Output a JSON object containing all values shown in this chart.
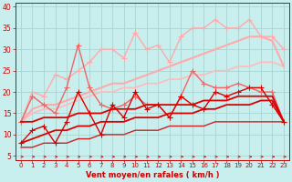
{
  "xlabel": "Vent moyen/en rafales ( km/h )",
  "background_color": "#c8eeed",
  "grid_color": "#a8d4d4",
  "x_values": [
    0,
    1,
    2,
    3,
    4,
    5,
    6,
    7,
    8,
    9,
    10,
    11,
    12,
    13,
    14,
    15,
    16,
    17,
    18,
    19,
    20,
    21,
    22,
    23
  ],
  "ylim": [
    4,
    41
  ],
  "xlim": [
    -0.5,
    23.5
  ],
  "yticks": [
    5,
    10,
    15,
    20,
    25,
    30,
    35,
    40
  ],
  "lines": [
    {
      "y": [
        8,
        11,
        12,
        8,
        13,
        20,
        15,
        10,
        17,
        14,
        20,
        16,
        17,
        14,
        19,
        17,
        16,
        20,
        19,
        20,
        21,
        21,
        17,
        13
      ],
      "color": "#dd0000",
      "marker": "+",
      "markersize": 4,
      "linewidth": 1.0,
      "zorder": 6
    },
    {
      "y": [
        8,
        9,
        10,
        11,
        11,
        12,
        12,
        13,
        13,
        13,
        14,
        14,
        14,
        15,
        15,
        15,
        16,
        16,
        17,
        17,
        17,
        18,
        18,
        13
      ],
      "color": "#dd0000",
      "marker": null,
      "markersize": 0,
      "linewidth": 1.3,
      "zorder": 5
    },
    {
      "y": [
        13,
        13,
        14,
        14,
        14,
        15,
        15,
        15,
        16,
        16,
        16,
        17,
        17,
        17,
        17,
        17,
        18,
        18,
        18,
        19,
        19,
        19,
        19,
        13
      ],
      "color": "#dd0000",
      "marker": null,
      "markersize": 0,
      "linewidth": 1.3,
      "zorder": 5
    },
    {
      "y": [
        7,
        7,
        8,
        8,
        8,
        9,
        9,
        10,
        10,
        10,
        11,
        11,
        11,
        12,
        12,
        12,
        12,
        13,
        13,
        13,
        13,
        13,
        13,
        13
      ],
      "color": "#cc2222",
      "marker": null,
      "markersize": 0,
      "linewidth": 1.0,
      "zorder": 3
    },
    {
      "y": [
        13,
        19,
        17,
        15,
        21,
        31,
        21,
        17,
        16,
        17,
        19,
        17,
        17,
        14,
        19,
        25,
        22,
        21,
        21,
        22,
        21,
        20,
        20,
        13
      ],
      "color": "#ee6666",
      "marker": "+",
      "markersize": 4,
      "linewidth": 1.0,
      "zorder": 4
    },
    {
      "y": [
        13,
        16,
        17,
        17,
        18,
        19,
        20,
        21,
        22,
        22,
        23,
        24,
        25,
        26,
        27,
        28,
        29,
        30,
        31,
        32,
        33,
        33,
        32,
        26
      ],
      "color": "#ffaaaa",
      "marker": null,
      "markersize": 0,
      "linewidth": 1.5,
      "zorder": 2
    },
    {
      "y": [
        13,
        20,
        19,
        24,
        23,
        25,
        27,
        30,
        30,
        28,
        34,
        30,
        31,
        27,
        33,
        35,
        35,
        37,
        35,
        35,
        37,
        33,
        33,
        30
      ],
      "color": "#ffaaaa",
      "marker": "+",
      "markersize": 4,
      "linewidth": 1.0,
      "zorder": 3
    },
    {
      "y": [
        13,
        15,
        16,
        16,
        17,
        18,
        19,
        20,
        20,
        21,
        21,
        22,
        22,
        23,
        23,
        24,
        24,
        25,
        25,
        26,
        26,
        27,
        27,
        26
      ],
      "color": "#ffbbbb",
      "marker": null,
      "markersize": 0,
      "linewidth": 1.2,
      "zorder": 1
    }
  ]
}
